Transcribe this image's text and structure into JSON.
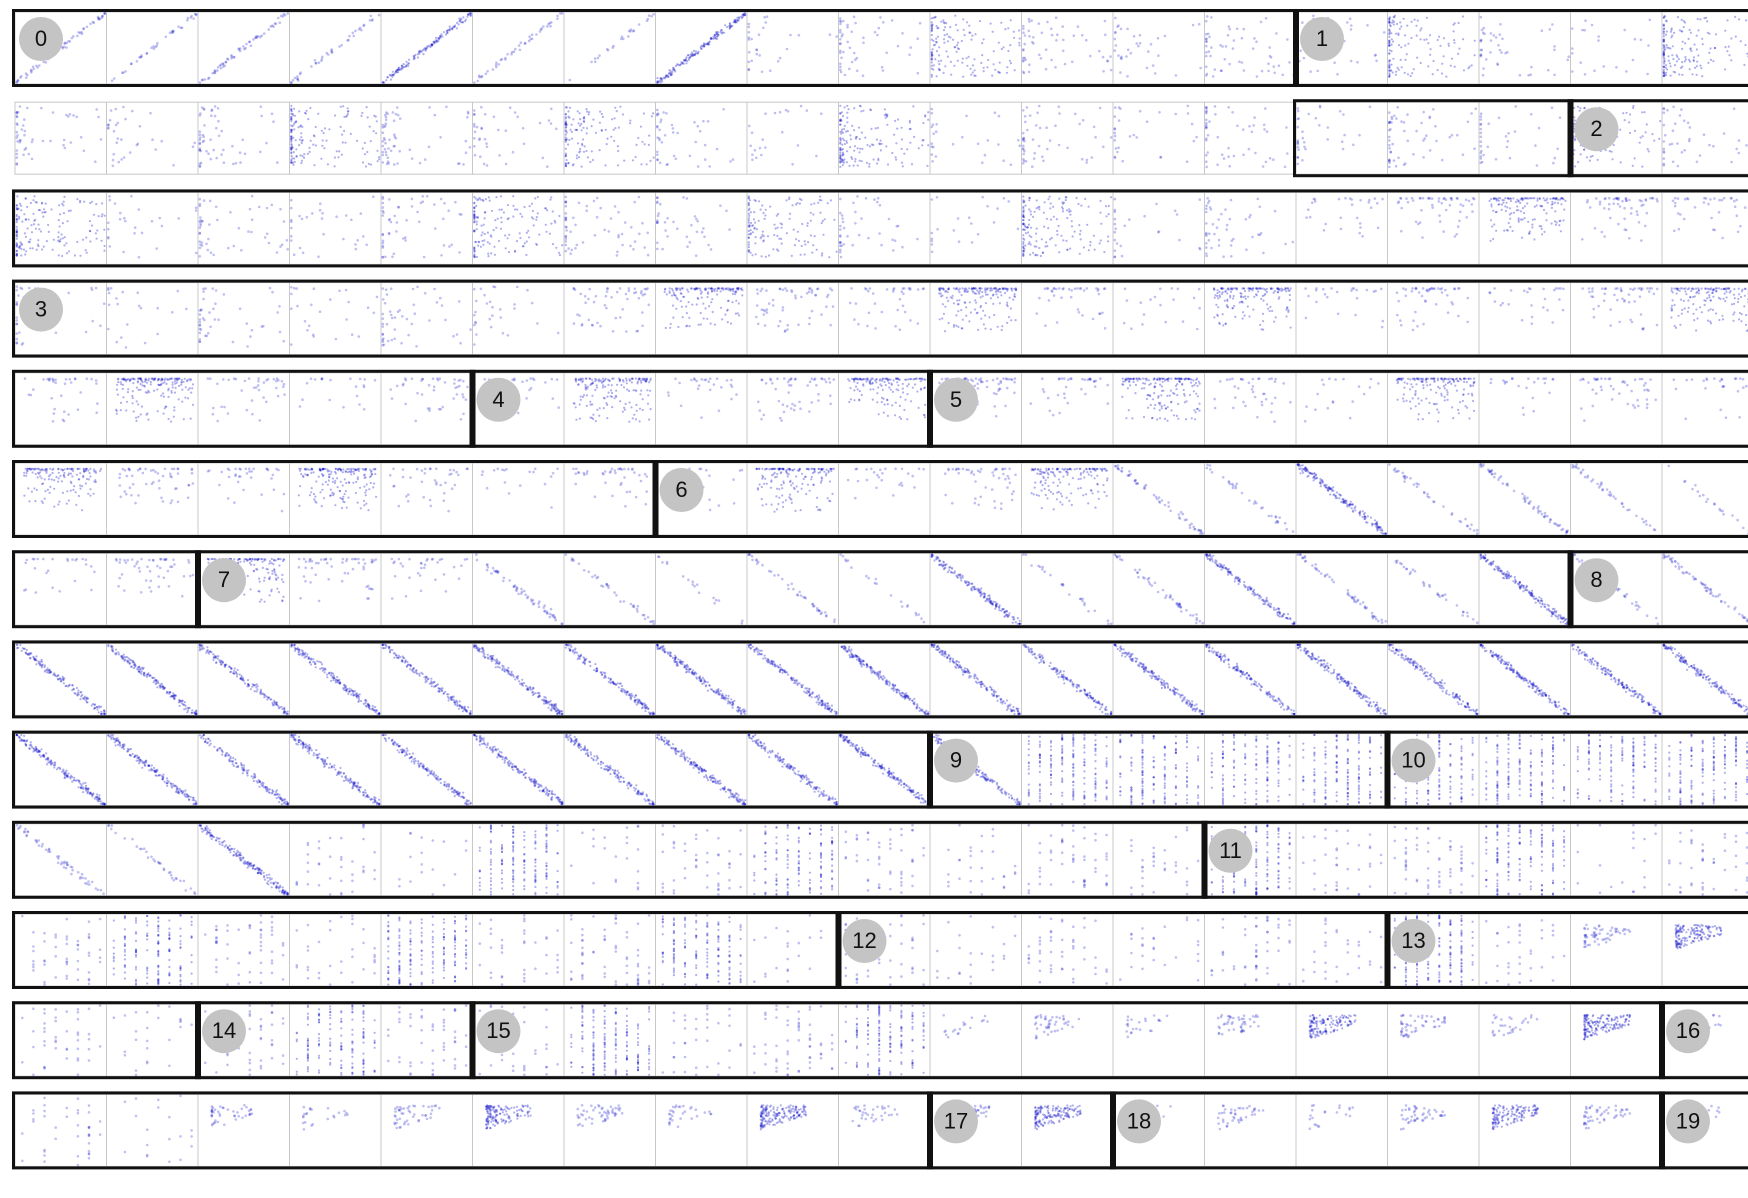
{
  "theme": {
    "point_color": "#1a1acc",
    "grid_color": "#c8c8c8",
    "border_color": "#111111",
    "badge_fill": "#c4c4c4",
    "badge_text": "#111111"
  },
  "grid": {
    "columns": 19,
    "rows": 13
  },
  "clusters": [
    {
      "label": "0",
      "cells": [
        [
          0,
          0
        ],
        [
          0,
          1
        ],
        [
          0,
          2
        ],
        [
          0,
          3
        ],
        [
          0,
          4
        ],
        [
          0,
          5
        ],
        [
          0,
          6
        ],
        [
          0,
          7
        ],
        [
          0,
          8
        ],
        [
          0,
          9
        ],
        [
          0,
          10
        ],
        [
          0,
          11
        ],
        [
          0,
          12
        ],
        [
          0,
          13
        ]
      ]
    },
    {
      "label": "1",
      "cells": [
        [
          0,
          14
        ],
        [
          0,
          15
        ],
        [
          0,
          16
        ],
        [
          0,
          17
        ],
        [
          0,
          18
        ],
        [
          1,
          14
        ],
        [
          1,
          15
        ],
        [
          1,
          16
        ]
      ]
    },
    {
      "label": "2",
      "cells": [
        [
          1,
          17
        ],
        [
          1,
          18
        ],
        [
          2,
          0
        ],
        [
          2,
          1
        ],
        [
          2,
          2
        ],
        [
          2,
          3
        ],
        [
          2,
          4
        ],
        [
          2,
          5
        ],
        [
          2,
          6
        ],
        [
          2,
          7
        ],
        [
          2,
          8
        ],
        [
          2,
          9
        ],
        [
          2,
          10
        ],
        [
          2,
          11
        ],
        [
          2,
          12
        ],
        [
          2,
          13
        ],
        [
          2,
          14
        ],
        [
          2,
          15
        ],
        [
          2,
          16
        ],
        [
          2,
          17
        ],
        [
          2,
          18
        ]
      ]
    },
    {
      "label": "3",
      "cells": [
        [
          3,
          0
        ],
        [
          3,
          1
        ],
        [
          3,
          2
        ],
        [
          3,
          3
        ],
        [
          3,
          4
        ],
        [
          3,
          5
        ],
        [
          3,
          6
        ],
        [
          3,
          7
        ],
        [
          3,
          8
        ],
        [
          3,
          9
        ],
        [
          3,
          10
        ],
        [
          3,
          11
        ],
        [
          3,
          12
        ],
        [
          3,
          13
        ],
        [
          3,
          14
        ],
        [
          3,
          15
        ],
        [
          3,
          16
        ],
        [
          3,
          17
        ],
        [
          3,
          18
        ],
        [
          4,
          0
        ],
        [
          4,
          1
        ],
        [
          4,
          2
        ],
        [
          4,
          3
        ],
        [
          4,
          4
        ]
      ]
    },
    {
      "label": "4",
      "cells": [
        [
          4,
          5
        ],
        [
          4,
          6
        ],
        [
          4,
          7
        ],
        [
          4,
          8
        ],
        [
          4,
          9
        ]
      ]
    },
    {
      "label": "5",
      "cells": [
        [
          4,
          10
        ],
        [
          4,
          11
        ],
        [
          4,
          12
        ],
        [
          4,
          13
        ],
        [
          4,
          14
        ],
        [
          4,
          15
        ],
        [
          4,
          16
        ],
        [
          4,
          17
        ],
        [
          4,
          18
        ],
        [
          5,
          0
        ],
        [
          5,
          1
        ],
        [
          5,
          2
        ],
        [
          5,
          3
        ],
        [
          5,
          4
        ],
        [
          5,
          5
        ],
        [
          5,
          6
        ]
      ]
    },
    {
      "label": "6",
      "cells": [
        [
          5,
          7
        ],
        [
          5,
          8
        ],
        [
          5,
          9
        ],
        [
          5,
          10
        ],
        [
          5,
          11
        ],
        [
          5,
          12
        ],
        [
          5,
          13
        ],
        [
          5,
          14
        ],
        [
          5,
          15
        ],
        [
          5,
          16
        ],
        [
          5,
          17
        ],
        [
          5,
          18
        ],
        [
          6,
          0
        ],
        [
          6,
          1
        ]
      ]
    },
    {
      "label": "7",
      "cells": [
        [
          6,
          2
        ],
        [
          6,
          3
        ],
        [
          6,
          4
        ],
        [
          6,
          5
        ],
        [
          6,
          6
        ],
        [
          6,
          7
        ],
        [
          6,
          8
        ],
        [
          6,
          9
        ],
        [
          6,
          10
        ],
        [
          6,
          11
        ],
        [
          6,
          12
        ],
        [
          6,
          13
        ],
        [
          6,
          14
        ],
        [
          6,
          15
        ],
        [
          6,
          16
        ]
      ]
    },
    {
      "label": "8",
      "cells": [
        [
          6,
          17
        ],
        [
          6,
          18
        ],
        [
          7,
          0
        ],
        [
          7,
          1
        ],
        [
          7,
          2
        ],
        [
          7,
          3
        ],
        [
          7,
          4
        ],
        [
          7,
          5
        ],
        [
          7,
          6
        ],
        [
          7,
          7
        ],
        [
          7,
          8
        ],
        [
          7,
          9
        ],
        [
          7,
          10
        ],
        [
          7,
          11
        ],
        [
          7,
          12
        ],
        [
          7,
          13
        ],
        [
          7,
          14
        ],
        [
          7,
          15
        ],
        [
          7,
          16
        ],
        [
          7,
          17
        ],
        [
          7,
          18
        ],
        [
          8,
          0
        ],
        [
          8,
          1
        ],
        [
          8,
          2
        ],
        [
          8,
          3
        ],
        [
          8,
          4
        ],
        [
          8,
          5
        ],
        [
          8,
          6
        ],
        [
          8,
          7
        ],
        [
          8,
          8
        ],
        [
          8,
          9
        ]
      ]
    },
    {
      "label": "9",
      "cells": [
        [
          8,
          10
        ],
        [
          8,
          11
        ],
        [
          8,
          12
        ],
        [
          8,
          13
        ],
        [
          8,
          14
        ]
      ]
    },
    {
      "label": "10",
      "cells": [
        [
          8,
          15
        ],
        [
          8,
          16
        ],
        [
          8,
          17
        ],
        [
          8,
          18
        ],
        [
          9,
          0
        ],
        [
          9,
          1
        ],
        [
          9,
          2
        ],
        [
          9,
          3
        ],
        [
          9,
          4
        ],
        [
          9,
          5
        ],
        [
          9,
          6
        ],
        [
          9,
          7
        ],
        [
          9,
          8
        ],
        [
          9,
          9
        ],
        [
          9,
          10
        ],
        [
          9,
          11
        ],
        [
          9,
          12
        ]
      ]
    },
    {
      "label": "11",
      "cells": [
        [
          9,
          13
        ],
        [
          9,
          14
        ],
        [
          9,
          15
        ],
        [
          9,
          16
        ],
        [
          9,
          17
        ],
        [
          9,
          18
        ],
        [
          10,
          0
        ],
        [
          10,
          1
        ],
        [
          10,
          2
        ],
        [
          10,
          3
        ],
        [
          10,
          4
        ],
        [
          10,
          5
        ],
        [
          10,
          6
        ],
        [
          10,
          7
        ],
        [
          10,
          8
        ]
      ]
    },
    {
      "label": "12",
      "cells": [
        [
          10,
          9
        ],
        [
          10,
          10
        ],
        [
          10,
          11
        ],
        [
          10,
          12
        ],
        [
          10,
          13
        ],
        [
          10,
          14
        ]
      ]
    },
    {
      "label": "13",
      "cells": [
        [
          10,
          15
        ],
        [
          10,
          16
        ],
        [
          10,
          17
        ],
        [
          10,
          18
        ],
        [
          11,
          0
        ],
        [
          11,
          1
        ]
      ]
    },
    {
      "label": "14",
      "cells": [
        [
          11,
          2
        ],
        [
          11,
          3
        ],
        [
          11,
          4
        ]
      ]
    },
    {
      "label": "15",
      "cells": [
        [
          11,
          5
        ],
        [
          11,
          6
        ],
        [
          11,
          7
        ],
        [
          11,
          8
        ],
        [
          11,
          9
        ],
        [
          11,
          10
        ],
        [
          11,
          11
        ],
        [
          11,
          12
        ],
        [
          11,
          13
        ],
        [
          11,
          14
        ],
        [
          11,
          15
        ],
        [
          11,
          16
        ],
        [
          11,
          17
        ]
      ]
    },
    {
      "label": "16",
      "cells": [
        [
          11,
          18
        ],
        [
          12,
          0
        ],
        [
          12,
          1
        ],
        [
          12,
          2
        ],
        [
          12,
          3
        ],
        [
          12,
          4
        ],
        [
          12,
          5
        ],
        [
          12,
          6
        ],
        [
          12,
          7
        ],
        [
          12,
          8
        ],
        [
          12,
          9
        ]
      ]
    },
    {
      "label": "17",
      "cells": [
        [
          12,
          10
        ],
        [
          12,
          11
        ]
      ]
    },
    {
      "label": "18",
      "cells": [
        [
          12,
          12
        ],
        [
          12,
          13
        ],
        [
          12,
          14
        ],
        [
          12,
          15
        ],
        [
          12,
          16
        ],
        [
          12,
          17
        ]
      ]
    },
    {
      "label": "19",
      "cells": [
        [
          12,
          18
        ]
      ]
    }
  ]
}
